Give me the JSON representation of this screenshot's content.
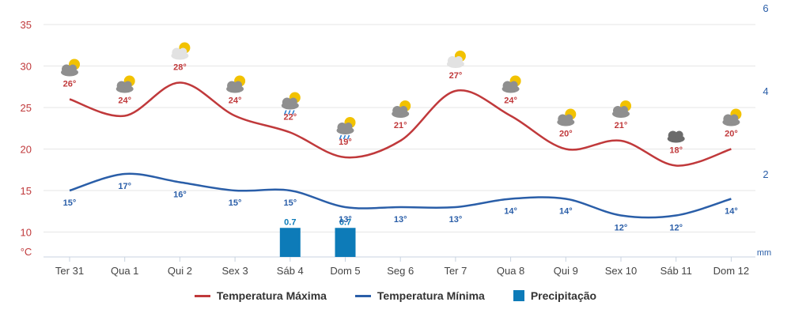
{
  "chart_data": {
    "type": "line",
    "categories": [
      "Ter 31",
      "Qua 1",
      "Qui 2",
      "Sex 3",
      "Sáb 4",
      "Dom 5",
      "Seg 6",
      "Ter 7",
      "Qua 8",
      "Qui 9",
      "Sex 10",
      "Sáb 11",
      "Dom 12"
    ],
    "series": [
      {
        "name": "Temperatura Máxima",
        "values": [
          26,
          24,
          28,
          24,
          22,
          19,
          21,
          27,
          24,
          20,
          21,
          18,
          20
        ],
        "color": "#c0393b",
        "axis": "left"
      },
      {
        "name": "Temperatura Mínima",
        "values": [
          15,
          17,
          16,
          15,
          15,
          13,
          13,
          13,
          14,
          14,
          12,
          12,
          14
        ],
        "color": "#2a5ea8",
        "axis": "left"
      },
      {
        "name": "Precipitação",
        "values": [
          0,
          0,
          0,
          0,
          0.7,
          0.7,
          0,
          0,
          0,
          0,
          0,
          0,
          0
        ],
        "color": "#0d7bb8",
        "axis": "right",
        "type": "bar"
      }
    ],
    "max_labels": [
      "26°",
      "24°",
      "28°",
      "24°",
      "22°",
      "19°",
      "21°",
      "27°",
      "24°",
      "20°",
      "21°",
      "18°",
      "20°"
    ],
    "min_labels": [
      "15°",
      "17°",
      "16°",
      "15°",
      "15°",
      "13°",
      "13°",
      "13°",
      "14°",
      "14°",
      "12°",
      "12°",
      "14°"
    ],
    "precip_labels": [
      "",
      "",
      "",
      "",
      "0.7",
      "0.7",
      "",
      "",
      "",
      "",
      "",
      "",
      ""
    ],
    "weather_icons": [
      "sun-cloud-icon",
      "sun-cloud-icon",
      "sun-cloud-icon",
      "sun-cloud-icon",
      "sun-cloud-rain-icon",
      "sun-cloud-rain-icon",
      "sun-cloud-icon",
      "sun-cloud-icon",
      "sun-cloud-icon",
      "sun-cloud-icon",
      "sun-cloud-icon",
      "cloud-icon",
      "sun-cloud-icon"
    ],
    "y_left": {
      "unit": "°C",
      "ticks": [
        "10",
        "15",
        "20",
        "25",
        "30",
        "35"
      ],
      "range": [
        7,
        37
      ]
    },
    "y_right": {
      "unit": "mm",
      "ticks": [
        "2",
        "4",
        "6"
      ],
      "range": [
        0,
        6
      ]
    },
    "grid": true,
    "legend_position": "bottom-center",
    "legend": [
      "Temperatura Máxima",
      "Temperatura Mínima",
      "Precipitação"
    ]
  }
}
